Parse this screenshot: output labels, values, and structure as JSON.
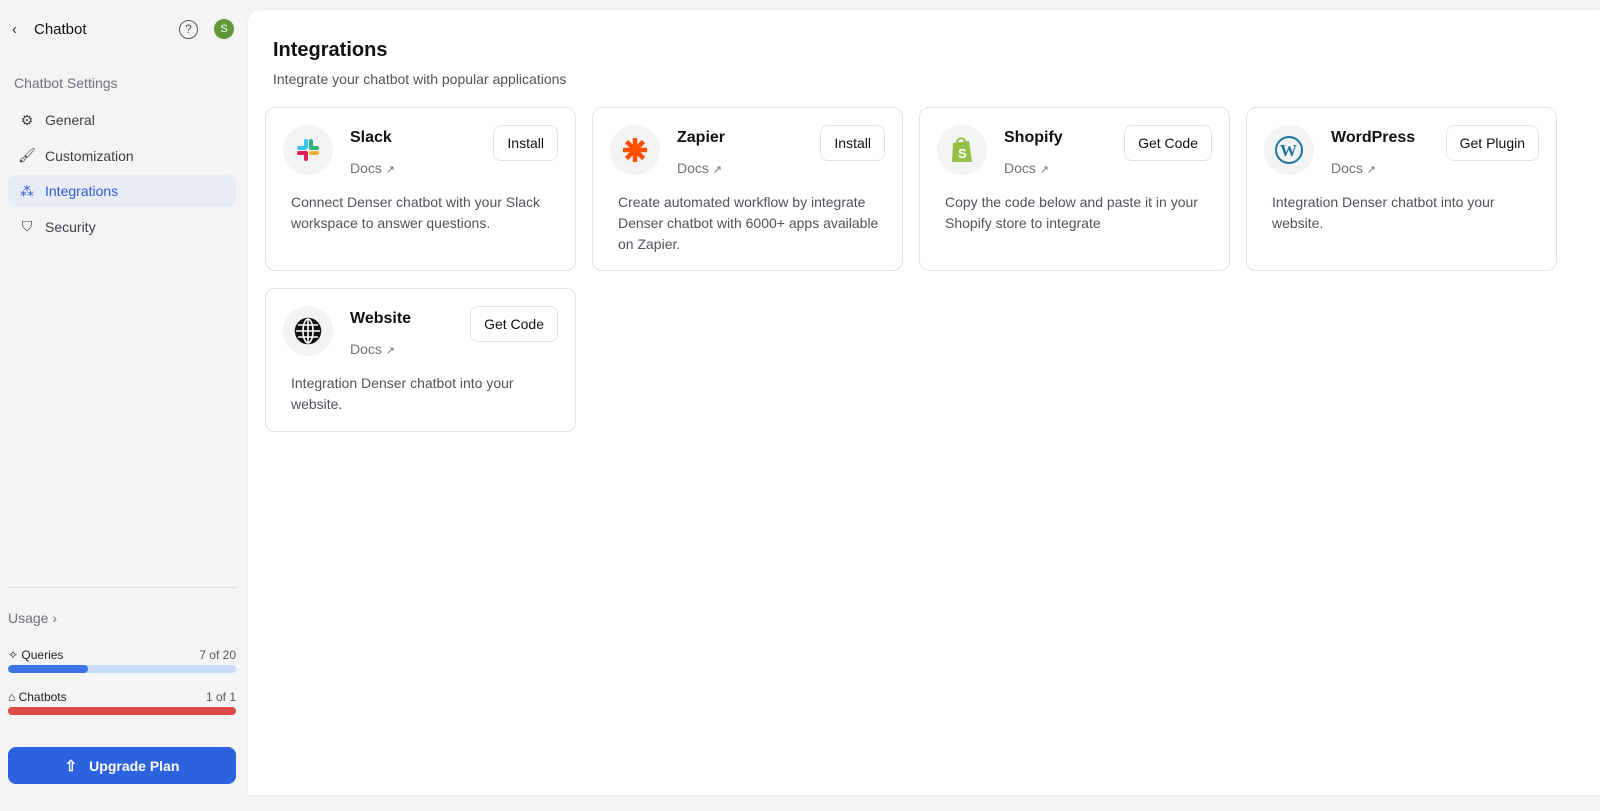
{
  "sidebar": {
    "back_label": "Chatbot",
    "avatar_letter": "S",
    "section": "Chatbot Settings",
    "items": [
      {
        "label": "General",
        "icon": "gear-icon"
      },
      {
        "label": "Customization",
        "icon": "brush-icon"
      },
      {
        "label": "Integrations",
        "icon": "integrations-icon",
        "active": true
      },
      {
        "label": "Security",
        "icon": "shield-icon"
      }
    ],
    "usage_label": "Usage ›",
    "queries": {
      "label": "Queries",
      "value": "7 of 20",
      "fraction": 0.35,
      "color": "#3b74e6",
      "track": "#c9dafa"
    },
    "chatbots": {
      "label": "Chatbots",
      "value": "1 of 1",
      "fraction": 1.0,
      "color": "#dc4b45"
    },
    "upgrade_label": "Upgrade Plan"
  },
  "main": {
    "title": "Integrations",
    "subtitle": "Integrate your chatbot with popular applications",
    "cards": [
      {
        "name": "Slack",
        "docs": "Docs",
        "button": "Install",
        "desc": "Connect Denser chatbot with your Slack workspace to answer questions."
      },
      {
        "name": "Zapier",
        "docs": "Docs",
        "button": "Install",
        "desc": "Create automated workflow by integrate Denser chatbot with 6000+ apps available on Zapier."
      },
      {
        "name": "Shopify",
        "docs": "Docs",
        "button": "Get Code",
        "desc": "Copy the code below and paste it in your Shopify store to integrate"
      },
      {
        "name": "WordPress",
        "docs": "Docs",
        "button": "Get Plugin",
        "desc": "Integration Denser chatbot into your website."
      },
      {
        "name": "Website",
        "docs": "Docs",
        "button": "Get Code",
        "desc": "Integration Denser chatbot into your website."
      }
    ]
  }
}
